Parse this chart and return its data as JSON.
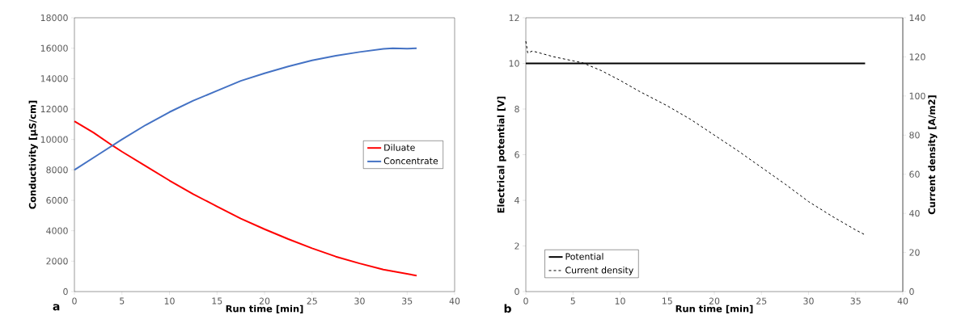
{
  "chart_data": [
    {
      "type": "line",
      "xlabel": "Run time [min]",
      "ylabel": "Conductivity [µS/cm]",
      "annotations": [
        "a"
      ],
      "xlim": [
        0,
        40
      ],
      "xticks": [
        0,
        5,
        10,
        15,
        20,
        25,
        30,
        35,
        40
      ],
      "ylim": [
        0,
        18000
      ],
      "yticks": [
        0,
        2000,
        4000,
        6000,
        8000,
        10000,
        12000,
        14000,
        16000,
        18000
      ],
      "grid": false,
      "legend": "right",
      "series": [
        {
          "name": "Diluate",
          "color": "#ff0000",
          "line_style": "solid",
          "x": [
            0,
            2,
            4,
            5,
            7.5,
            10,
            12.5,
            15,
            17.5,
            20,
            22.5,
            25,
            27.5,
            30,
            32.5,
            36
          ],
          "values": [
            11200,
            10450,
            9600,
            9200,
            8250,
            7300,
            6400,
            5600,
            4800,
            4100,
            3450,
            2850,
            2300,
            1850,
            1450,
            1050
          ]
        },
        {
          "name": "Concentrate",
          "color": "#4472c4",
          "line_style": "solid",
          "x": [
            0,
            2.5,
            5,
            7.5,
            10,
            12.5,
            15,
            17.5,
            20,
            22.5,
            25,
            27.5,
            30,
            32.5,
            33.5,
            35,
            36
          ],
          "values": [
            8000,
            9000,
            10000,
            10950,
            11800,
            12550,
            13200,
            13850,
            14350,
            14800,
            15200,
            15500,
            15750,
            15950,
            16000,
            15970,
            16000
          ]
        }
      ]
    },
    {
      "type": "line",
      "xlabel": "Run time [min]",
      "ylabel": "Electrical potential [V]",
      "y2label": "Current density [A/m2]",
      "annotations": [
        "b"
      ],
      "xlim": [
        0,
        40
      ],
      "xticks": [
        0,
        5,
        10,
        15,
        20,
        25,
        30,
        35,
        40
      ],
      "ylim": [
        0,
        12
      ],
      "yticks": [
        0,
        2,
        4,
        6,
        8,
        10,
        12
      ],
      "y2lim": [
        0,
        140
      ],
      "y2ticks": [
        0,
        20,
        40,
        60,
        80,
        100,
        120,
        140
      ],
      "grid": false,
      "legend": "bottom left",
      "series": [
        {
          "name": "Potential",
          "color": "#000000",
          "line_style": "solid",
          "x": [
            0,
            36
          ],
          "values": [
            10,
            10
          ]
        },
        {
          "name": "Current density",
          "color": "#000000",
          "line_style": "dashed",
          "axis": "y2",
          "x": [
            0,
            0.2,
            0.7,
            3,
            5,
            6,
            8,
            10,
            12,
            15,
            17.5,
            20,
            22.5,
            25,
            27.5,
            30,
            32.5,
            35,
            36
          ],
          "values": [
            128,
            122,
            123,
            120,
            118,
            117,
            113,
            108,
            102.5,
            95,
            88,
            80,
            72,
            63.5,
            55,
            46,
            38.5,
            31.5,
            29
          ]
        }
      ]
    }
  ]
}
